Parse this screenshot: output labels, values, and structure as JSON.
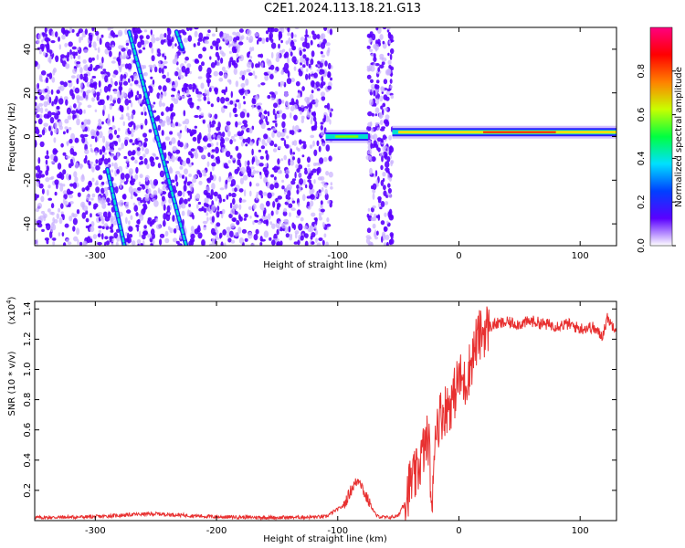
{
  "title": "C2E1.2024.113.18.21.G13",
  "chart_data": [
    {
      "type": "heatmap",
      "xlabel": "Height of straight line (km)",
      "ylabel": "Frequency (Hz)",
      "xlim": [
        -350,
        130
      ],
      "ylim": [
        -50,
        50
      ],
      "x_ticks": [
        -300,
        -200,
        -100,
        0,
        100
      ],
      "y_ticks": [
        -40,
        -20,
        0,
        20,
        40
      ],
      "colorbar": {
        "label": "Normalized spectral amplitude",
        "range": [
          0,
          1
        ],
        "ticks": [
          "0.0",
          "0.2",
          "0.4",
          "0.6",
          "0.8"
        ],
        "colors": [
          "#ffffff",
          "#5a00ff",
          "#0040ff",
          "#00e0ff",
          "#00ff40",
          "#c8ff00",
          "#ff8000",
          "#ff0000",
          "#ff0080"
        ]
      },
      "features": {
        "noise_region_x": [
          -350,
          -105
        ],
        "noise_gap_x": [
          -100,
          -75
        ],
        "noise_strip_x": [
          -75,
          -55
        ],
        "streak_1": {
          "from": [
            -272,
            48
          ],
          "to": [
            -225,
            -50
          ]
        },
        "streak_2": {
          "from": [
            -290,
            -15
          ],
          "to": [
            -276,
            -50
          ]
        },
        "streak_3": {
          "from": [
            -233,
            48
          ],
          "to": [
            -228,
            40
          ]
        },
        "band_low_x": [
          -110,
          -75
        ],
        "band_low_freq": 0,
        "band_main_x": [
          -55,
          130
        ],
        "band_main_freq": 2
      },
      "colors": {
        "noise": "#5a00ff",
        "noise_light": "#c9b0ff",
        "streak": "#00e0d0"
      }
    },
    {
      "type": "line",
      "xlabel": "Height of straight line (km)",
      "ylabel": "SNR (10 * v/v)",
      "y_multiplier": "(x10",
      "y_multiplier_exp": "4",
      "xlim": [
        -350,
        130
      ],
      "ylim": [
        0,
        1.45
      ],
      "x_ticks": [
        -300,
        -200,
        -100,
        0,
        100
      ],
      "y_ticks": [
        0.2,
        0.4,
        0.6,
        0.8,
        1.0,
        1.2,
        1.4
      ],
      "series": [
        {
          "color": "#e83030",
          "x": [
            -350,
            -300,
            -270,
            -250,
            -200,
            -150,
            -110,
            -95,
            -88,
            -82,
            -78,
            -74,
            -68,
            -60,
            -50,
            -44,
            -40,
            -35,
            -30,
            -25,
            -22,
            -20,
            -15,
            -10,
            -5,
            0,
            5,
            10,
            15,
            20,
            25,
            30,
            40,
            50,
            60,
            70,
            80,
            90,
            100,
            110,
            118,
            123,
            125,
            130
          ],
          "y": [
            0.02,
            0.025,
            0.04,
            0.045,
            0.025,
            0.02,
            0.025,
            0.1,
            0.22,
            0.28,
            0.18,
            0.12,
            0.03,
            0.02,
            0.03,
            0.15,
            0.25,
            0.3,
            0.45,
            0.55,
            0.02,
            0.6,
            0.7,
            0.75,
            0.8,
            0.95,
            0.9,
            1.05,
            1.2,
            1.25,
            1.28,
            1.3,
            1.31,
            1.3,
            1.32,
            1.3,
            1.29,
            1.3,
            1.27,
            1.28,
            1.22,
            1.35,
            1.3,
            1.28
          ]
        }
      ]
    }
  ]
}
